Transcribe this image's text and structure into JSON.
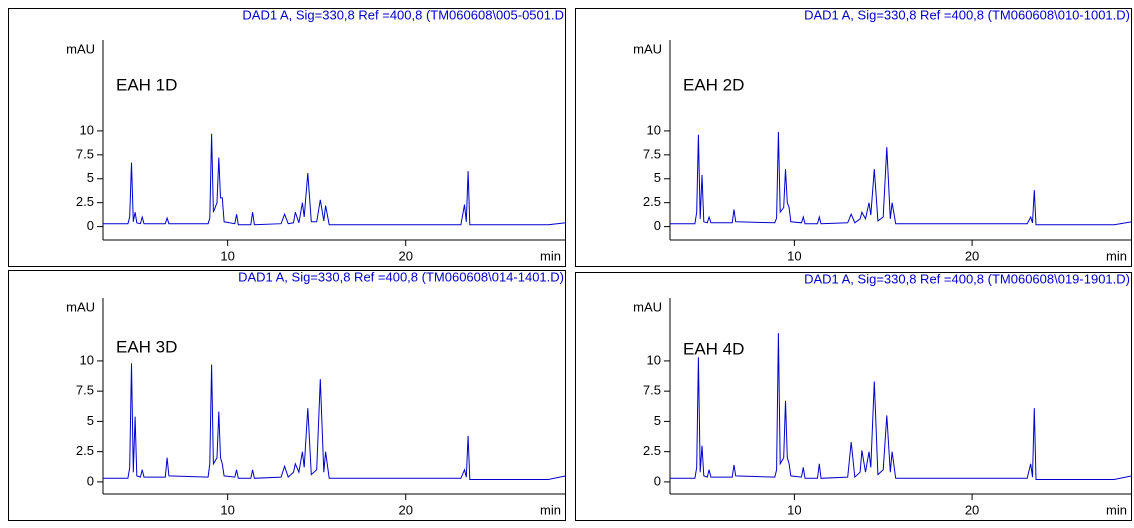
{
  "chart_data": [
    {
      "type": "line",
      "title": "DAD1 A, Sig=330,8 Ref =400,8 (TM060608\\005-0501.D",
      "annotation": "EAH 1D",
      "y_label": "mAU",
      "x_label": "min",
      "color": "#0000cc",
      "x": [
        3.0,
        4.4,
        4.5,
        4.6,
        4.7,
        4.8,
        4.9,
        5.1,
        5.2,
        5.3,
        6.5,
        6.6,
        6.7,
        8.9,
        9.0,
        9.1,
        9.2,
        9.4,
        9.5,
        9.6,
        9.7,
        9.8,
        10.4,
        10.5,
        10.6,
        11.3,
        11.4,
        11.5,
        13.0,
        13.2,
        13.4,
        13.7,
        13.8,
        14.0,
        14.2,
        14.3,
        14.5,
        14.7,
        15.0,
        15.2,
        15.4,
        15.5,
        15.7,
        23.1,
        23.3,
        23.4,
        23.5,
        23.6,
        28.0,
        29.0
      ],
      "values": [
        0.3,
        0.3,
        1.0,
        6.7,
        0.5,
        1.5,
        0.4,
        0.3,
        1.0,
        0.3,
        0.3,
        0.9,
        0.3,
        0.3,
        0.9,
        9.7,
        1.5,
        2.5,
        7.2,
        3.0,
        3.0,
        0.5,
        0.3,
        1.3,
        0.2,
        0.2,
        1.5,
        0.2,
        0.3,
        1.3,
        0.3,
        0.4,
        1.5,
        0.4,
        2.5,
        1.0,
        5.6,
        0.5,
        0.5,
        2.8,
        0.6,
        2.2,
        0.2,
        0.2,
        2.3,
        0.5,
        5.8,
        0.2,
        0.2,
        0.4
      ],
      "xlim": [
        3,
        29
      ],
      "ylim": [
        -1.4,
        19.5
      ],
      "xticks": [
        10,
        20
      ],
      "yticks": [
        0,
        2.5,
        5,
        7.5,
        10
      ]
    },
    {
      "type": "line",
      "title": "DAD1 A, Sig=330,8 Ref =400,8 (TM060608\\010-1001.D)",
      "annotation": "EAH 2D",
      "y_label": "mAU",
      "x_label": "min",
      "color": "#0000cc",
      "x": [
        3.0,
        4.4,
        4.5,
        4.6,
        4.7,
        4.8,
        4.9,
        5.1,
        5.2,
        5.3,
        6.5,
        6.6,
        6.7,
        8.9,
        9.0,
        9.1,
        9.2,
        9.4,
        9.5,
        9.6,
        9.7,
        9.8,
        10.4,
        10.5,
        10.6,
        11.3,
        11.4,
        11.5,
        13.0,
        13.2,
        13.4,
        13.7,
        13.8,
        14.0,
        14.2,
        14.3,
        14.5,
        14.7,
        15.0,
        15.2,
        15.4,
        15.5,
        15.7,
        23.1,
        23.3,
        23.4,
        23.5,
        23.6,
        28.0,
        29.0
      ],
      "values": [
        0.3,
        0.3,
        1.5,
        9.6,
        0.8,
        5.4,
        0.5,
        0.4,
        1.0,
        0.4,
        0.4,
        1.8,
        0.5,
        0.4,
        0.9,
        9.9,
        1.5,
        2.0,
        6.0,
        2.5,
        2.0,
        0.5,
        0.4,
        1.0,
        0.3,
        0.3,
        1.0,
        0.3,
        0.4,
        1.3,
        0.4,
        0.8,
        1.5,
        0.8,
        2.5,
        1.2,
        6.0,
        0.6,
        1.0,
        8.3,
        0.8,
        2.5,
        0.3,
        0.3,
        1.0,
        0.4,
        3.8,
        0.2,
        0.2,
        0.5
      ],
      "xlim": [
        3,
        29
      ],
      "ylim": [
        -1.4,
        19.5
      ],
      "xticks": [
        10,
        20
      ],
      "yticks": [
        0,
        2.5,
        5,
        7.5,
        10
      ]
    },
    {
      "type": "line",
      "title": "DAD1 A, Sig=330,8 Ref =400,8 (TM060608\\014-1401.D)",
      "annotation": "EAH 3D",
      "y_label": "mAU",
      "x_label": "min",
      "color": "#0000cc",
      "x": [
        3.0,
        4.4,
        4.5,
        4.6,
        4.7,
        4.8,
        4.9,
        5.1,
        5.2,
        5.3,
        6.5,
        6.6,
        6.7,
        8.9,
        9.0,
        9.1,
        9.2,
        9.4,
        9.5,
        9.6,
        9.7,
        9.8,
        10.4,
        10.5,
        10.6,
        11.3,
        11.4,
        11.5,
        13.0,
        13.2,
        13.4,
        13.7,
        13.8,
        14.0,
        14.2,
        14.3,
        14.5,
        14.7,
        15.0,
        15.2,
        15.4,
        15.5,
        15.7,
        23.1,
        23.3,
        23.4,
        23.5,
        23.6,
        28.0,
        29.0
      ],
      "values": [
        0.3,
        0.3,
        1.2,
        9.8,
        0.8,
        5.4,
        0.5,
        0.4,
        1.0,
        0.4,
        0.4,
        2.0,
        0.5,
        0.4,
        1.5,
        9.7,
        1.5,
        2.0,
        5.8,
        2.0,
        1.5,
        0.5,
        0.4,
        1.0,
        0.3,
        0.3,
        1.0,
        0.3,
        0.4,
        1.3,
        0.4,
        0.8,
        1.5,
        0.8,
        2.5,
        1.2,
        6.1,
        0.6,
        1.0,
        8.5,
        0.8,
        2.5,
        0.3,
        0.3,
        1.0,
        0.4,
        3.8,
        0.2,
        0.2,
        0.5
      ],
      "xlim": [
        3,
        29
      ],
      "ylim": [
        -1,
        15.2
      ],
      "xticks": [
        10,
        20
      ],
      "yticks": [
        0,
        2.5,
        5,
        7.5,
        10
      ]
    },
    {
      "type": "line",
      "title": "DAD1 A, Sig=330,8 Ref =400,8 (TM060608\\019-1901.D)",
      "annotation": "EAH 4D",
      "y_label": "mAU",
      "x_label": "min",
      "color": "#0000cc",
      "x": [
        3.0,
        4.4,
        4.5,
        4.6,
        4.7,
        4.8,
        4.9,
        5.1,
        5.2,
        5.3,
        6.5,
        6.6,
        6.7,
        8.9,
        9.0,
        9.1,
        9.2,
        9.4,
        9.5,
        9.6,
        9.7,
        9.8,
        10.4,
        10.5,
        10.6,
        11.3,
        11.4,
        11.5,
        13.0,
        13.2,
        13.4,
        13.7,
        13.8,
        14.0,
        14.2,
        14.3,
        14.5,
        14.7,
        15.0,
        15.2,
        15.4,
        15.5,
        15.7,
        23.1,
        23.3,
        23.4,
        23.5,
        23.6,
        28.0,
        29.0
      ],
      "values": [
        0.3,
        0.3,
        1.2,
        10.3,
        0.8,
        3.0,
        0.5,
        0.4,
        1.0,
        0.4,
        0.4,
        1.4,
        0.5,
        0.4,
        1.0,
        12.3,
        1.5,
        2.0,
        6.7,
        2.0,
        1.5,
        0.5,
        0.4,
        1.2,
        0.3,
        0.3,
        1.5,
        0.3,
        0.4,
        3.3,
        0.4,
        0.8,
        2.6,
        0.8,
        2.5,
        1.2,
        8.3,
        0.6,
        1.0,
        5.5,
        0.8,
        2.5,
        0.3,
        0.3,
        1.5,
        0.4,
        6.1,
        0.2,
        0.2,
        0.5
      ],
      "xlim": [
        3,
        29
      ],
      "ylim": [
        -1,
        15.2
      ],
      "xticks": [
        10,
        20
      ],
      "yticks": [
        0,
        2.5,
        5,
        7.5,
        10
      ]
    }
  ]
}
